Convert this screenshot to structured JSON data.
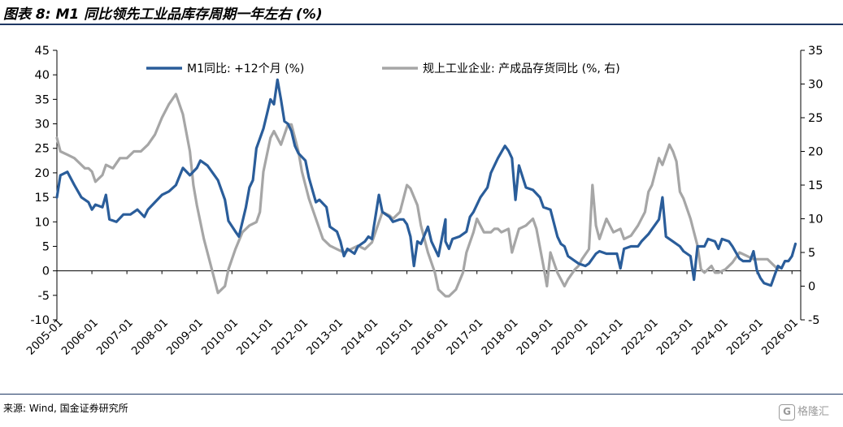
{
  "title": "图表 8: M1 同比领先工业品库存周期一年左右 (%)",
  "source": "来源: Wind, 国金证券研究所",
  "watermark": {
    "icon": "G",
    "text": "格隆汇"
  },
  "chart_data": {
    "type": "line",
    "title": "图表 8: M1 同比领先工业品库存周期一年左右 (%)",
    "x_ticks": [
      "2005-01",
      "2006-01",
      "2007-01",
      "2008-01",
      "2009-01",
      "2010-01",
      "2011-01",
      "2012-01",
      "2013-01",
      "2014-01",
      "2015-01",
      "2016-01",
      "2017-01",
      "2018-01",
      "2019-01",
      "2020-01",
      "2021-01",
      "2022-01",
      "2023-01",
      "2024-01",
      "2025-01",
      "2026-01"
    ],
    "y_left": {
      "ticks": [
        "45",
        "40",
        "35",
        "30",
        "25",
        "20",
        "15",
        "10",
        "5",
        "0",
        "-5",
        "-10"
      ],
      "range": [
        -10,
        45
      ]
    },
    "y_right": {
      "ticks": [
        "35",
        "30",
        "25",
        "20",
        "15",
        "10",
        "5",
        "0",
        "-5"
      ],
      "range": [
        -5,
        35
      ]
    },
    "series": [
      {
        "name": "M1同比: +12个月 (%)",
        "axis": "left",
        "color": "#2a5d9a",
        "points": [
          [
            2005.0,
            15
          ],
          [
            2005.1,
            19.5
          ],
          [
            2005.3,
            20.2
          ],
          [
            2005.5,
            17.5
          ],
          [
            2005.7,
            15
          ],
          [
            2005.9,
            14
          ],
          [
            2006.0,
            12.5
          ],
          [
            2006.1,
            13.5
          ],
          [
            2006.3,
            13
          ],
          [
            2006.4,
            15.5
          ],
          [
            2006.5,
            10.5
          ],
          [
            2006.7,
            10
          ],
          [
            2006.9,
            11.5
          ],
          [
            2007.1,
            11.5
          ],
          [
            2007.3,
            12.5
          ],
          [
            2007.5,
            11
          ],
          [
            2007.6,
            12.5
          ],
          [
            2007.8,
            14
          ],
          [
            2008.0,
            15.5
          ],
          [
            2008.2,
            16.2
          ],
          [
            2008.4,
            17.5
          ],
          [
            2008.6,
            21
          ],
          [
            2008.8,
            19.5
          ],
          [
            2009.0,
            21
          ],
          [
            2009.1,
            22.5
          ],
          [
            2009.3,
            21.5
          ],
          [
            2009.5,
            19.5
          ],
          [
            2009.6,
            18.5
          ],
          [
            2009.8,
            14.5
          ],
          [
            2009.9,
            10.2
          ],
          [
            2010.1,
            8
          ],
          [
            2010.2,
            7
          ],
          [
            2010.4,
            13
          ],
          [
            2010.5,
            17
          ],
          [
            2010.6,
            18.5
          ],
          [
            2010.7,
            25
          ],
          [
            2010.9,
            29
          ],
          [
            2011.0,
            32
          ],
          [
            2011.1,
            35
          ],
          [
            2011.2,
            34
          ],
          [
            2011.3,
            39
          ],
          [
            2011.4,
            35
          ],
          [
            2011.5,
            30.5
          ],
          [
            2011.6,
            30
          ],
          [
            2011.7,
            28.5
          ],
          [
            2011.8,
            25.5
          ],
          [
            2011.9,
            24
          ],
          [
            2012.1,
            22.5
          ],
          [
            2012.2,
            19
          ],
          [
            2012.4,
            14
          ],
          [
            2012.5,
            14.5
          ],
          [
            2012.7,
            13
          ],
          [
            2012.8,
            9
          ],
          [
            2013.0,
            8
          ],
          [
            2013.1,
            6
          ],
          [
            2013.2,
            3
          ],
          [
            2013.3,
            4.5
          ],
          [
            2013.5,
            3.5
          ],
          [
            2013.6,
            5
          ],
          [
            2013.8,
            6
          ],
          [
            2013.9,
            7
          ],
          [
            2014.0,
            6.5
          ],
          [
            2014.2,
            15.5
          ],
          [
            2014.3,
            12
          ],
          [
            2014.5,
            11
          ],
          [
            2014.6,
            10
          ],
          [
            2014.8,
            10.5
          ],
          [
            2014.9,
            10.5
          ],
          [
            2015.0,
            9.5
          ],
          [
            2015.1,
            7
          ],
          [
            2015.2,
            1
          ],
          [
            2015.3,
            6
          ],
          [
            2015.4,
            5.5
          ],
          [
            2015.6,
            9
          ],
          [
            2015.7,
            6
          ],
          [
            2015.8,
            4.5
          ],
          [
            2015.9,
            3
          ],
          [
            2016.1,
            10.5
          ],
          [
            2016.1,
            6
          ],
          [
            2016.2,
            4.5
          ],
          [
            2016.3,
            6.5
          ],
          [
            2016.5,
            7
          ],
          [
            2016.7,
            8
          ],
          [
            2016.8,
            11
          ],
          [
            2016.9,
            12
          ],
          [
            2017.1,
            15
          ],
          [
            2017.3,
            17
          ],
          [
            2017.4,
            20
          ],
          [
            2017.6,
            23
          ],
          [
            2017.8,
            25.5
          ],
          [
            2017.9,
            24.5
          ],
          [
            2018.0,
            23
          ],
          [
            2018.1,
            14.5
          ],
          [
            2018.2,
            21.5
          ],
          [
            2018.4,
            17
          ],
          [
            2018.6,
            16.5
          ],
          [
            2018.8,
            15
          ],
          [
            2018.9,
            13
          ],
          [
            2019.1,
            12.5
          ],
          [
            2019.3,
            7
          ],
          [
            2019.4,
            5.5
          ],
          [
            2019.5,
            5
          ],
          [
            2019.6,
            3
          ],
          [
            2019.8,
            2
          ],
          [
            2019.9,
            1.5
          ],
          [
            2020.1,
            1
          ],
          [
            2020.2,
            1.5
          ],
          [
            2020.4,
            3.5
          ],
          [
            2020.5,
            4
          ],
          [
            2020.7,
            3.5
          ],
          [
            2020.9,
            3.5
          ],
          [
            2021.0,
            3.5
          ],
          [
            2021.1,
            0.5
          ],
          [
            2021.2,
            4.5
          ],
          [
            2021.4,
            5
          ],
          [
            2021.6,
            5
          ],
          [
            2021.7,
            6
          ],
          [
            2021.9,
            7.5
          ],
          [
            2022.0,
            8.5
          ],
          [
            2022.2,
            10.5
          ],
          [
            2022.3,
            15
          ],
          [
            2022.4,
            7
          ],
          [
            2022.6,
            6
          ],
          [
            2022.8,
            5
          ],
          [
            2022.9,
            4
          ],
          [
            2023.1,
            3
          ],
          [
            2023.2,
            -1.8
          ],
          [
            2023.3,
            5
          ],
          [
            2023.5,
            5
          ],
          [
            2023.6,
            6.5
          ],
          [
            2023.8,
            6
          ],
          [
            2023.9,
            4.5
          ],
          [
            2024.0,
            6.5
          ],
          [
            2024.2,
            6
          ],
          [
            2024.3,
            5
          ],
          [
            2024.5,
            2.5
          ],
          [
            2024.6,
            2
          ],
          [
            2024.8,
            2
          ],
          [
            2024.9,
            4
          ],
          [
            2025.0,
            0
          ],
          [
            2025.1,
            -1.5
          ],
          [
            2025.2,
            -2.5
          ],
          [
            2025.4,
            -3
          ],
          [
            2025.6,
            1
          ],
          [
            2025.7,
            0.5
          ],
          [
            2025.8,
            2
          ],
          [
            2025.9,
            2
          ],
          [
            2026.0,
            3
          ],
          [
            2026.1,
            5.5
          ]
        ]
      },
      {
        "name": "规上工业企业: 产成品存货同比 (%, 右)",
        "axis": "right",
        "color": "#a6a6a6",
        "points": [
          [
            2005.0,
            22
          ],
          [
            2005.1,
            20
          ],
          [
            2005.3,
            19.5
          ],
          [
            2005.5,
            19
          ],
          [
            2005.7,
            18
          ],
          [
            2005.8,
            17.5
          ],
          [
            2005.9,
            17.5
          ],
          [
            2006.0,
            17
          ],
          [
            2006.1,
            15.5
          ],
          [
            2006.3,
            16.5
          ],
          [
            2006.4,
            18
          ],
          [
            2006.6,
            17.5
          ],
          [
            2006.8,
            19
          ],
          [
            2007.0,
            19
          ],
          [
            2007.2,
            20
          ],
          [
            2007.4,
            20
          ],
          [
            2007.6,
            21
          ],
          [
            2007.8,
            22.5
          ],
          [
            2008.0,
            25
          ],
          [
            2008.2,
            27
          ],
          [
            2008.4,
            28.5
          ],
          [
            2008.6,
            25.5
          ],
          [
            2008.8,
            20
          ],
          [
            2008.9,
            15
          ],
          [
            2009.0,
            12
          ],
          [
            2009.2,
            7
          ],
          [
            2009.4,
            3
          ],
          [
            2009.6,
            -1
          ],
          [
            2009.8,
            0
          ],
          [
            2009.9,
            2.5
          ],
          [
            2010.1,
            5.5
          ],
          [
            2010.3,
            8
          ],
          [
            2010.5,
            9
          ],
          [
            2010.7,
            9.5
          ],
          [
            2010.8,
            11
          ],
          [
            2010.9,
            17
          ],
          [
            2011.1,
            22
          ],
          [
            2011.2,
            23
          ],
          [
            2011.3,
            22
          ],
          [
            2011.4,
            21
          ],
          [
            2011.6,
            24
          ],
          [
            2011.7,
            24
          ],
          [
            2011.9,
            20
          ],
          [
            2012.0,
            17
          ],
          [
            2012.2,
            13
          ],
          [
            2012.4,
            10
          ],
          [
            2012.6,
            7
          ],
          [
            2012.8,
            6
          ],
          [
            2013.0,
            5.5
          ],
          [
            2013.2,
            5
          ],
          [
            2013.4,
            5.5
          ],
          [
            2013.6,
            6
          ],
          [
            2013.8,
            5.5
          ],
          [
            2014.0,
            6.5
          ],
          [
            2014.2,
            9.5
          ],
          [
            2014.3,
            11
          ],
          [
            2014.5,
            10.5
          ],
          [
            2014.6,
            10
          ],
          [
            2014.8,
            11
          ],
          [
            2014.9,
            13
          ],
          [
            2015.0,
            15
          ],
          [
            2015.1,
            14.5
          ],
          [
            2015.3,
            12
          ],
          [
            2015.4,
            9
          ],
          [
            2015.6,
            5
          ],
          [
            2015.8,
            2
          ],
          [
            2015.9,
            -0.5
          ],
          [
            2016.1,
            -1.5
          ],
          [
            2016.2,
            -1.5
          ],
          [
            2016.4,
            -0.5
          ],
          [
            2016.6,
            2
          ],
          [
            2016.7,
            5
          ],
          [
            2016.9,
            8
          ],
          [
            2017.0,
            10
          ],
          [
            2017.2,
            8
          ],
          [
            2017.4,
            8
          ],
          [
            2017.5,
            8.5
          ],
          [
            2017.6,
            8.5
          ],
          [
            2017.7,
            8
          ],
          [
            2017.9,
            8.5
          ],
          [
            2018.0,
            5
          ],
          [
            2018.2,
            8.5
          ],
          [
            2018.4,
            9
          ],
          [
            2018.6,
            10
          ],
          [
            2018.7,
            8.5
          ],
          [
            2018.9,
            3
          ],
          [
            2019.0,
            0
          ],
          [
            2019.1,
            5
          ],
          [
            2019.3,
            2
          ],
          [
            2019.5,
            0
          ],
          [
            2019.6,
            1
          ],
          [
            2019.8,
            2.5
          ],
          [
            2019.9,
            3
          ],
          [
            2020.0,
            4
          ],
          [
            2020.2,
            5.5
          ],
          [
            2020.3,
            15
          ],
          [
            2020.4,
            9
          ],
          [
            2020.5,
            7
          ],
          [
            2020.7,
            10
          ],
          [
            2020.8,
            9
          ],
          [
            2020.9,
            8
          ],
          [
            2021.1,
            8.5
          ],
          [
            2021.2,
            7
          ],
          [
            2021.4,
            7.5
          ],
          [
            2021.6,
            9
          ],
          [
            2021.8,
            11
          ],
          [
            2021.9,
            14
          ],
          [
            2022.0,
            15
          ],
          [
            2022.2,
            19
          ],
          [
            2022.3,
            18
          ],
          [
            2022.5,
            21
          ],
          [
            2022.6,
            20
          ],
          [
            2022.7,
            18.5
          ],
          [
            2022.8,
            14
          ],
          [
            2022.9,
            13
          ],
          [
            2023.1,
            10
          ],
          [
            2023.2,
            8
          ],
          [
            2023.3,
            6
          ],
          [
            2023.4,
            2.5
          ],
          [
            2023.5,
            2
          ],
          [
            2023.7,
            3
          ],
          [
            2023.8,
            2
          ],
          [
            2023.9,
            2
          ],
          [
            2024.1,
            2.5
          ],
          [
            2024.3,
            3.5
          ],
          [
            2024.5,
            5
          ],
          [
            2024.7,
            4.5
          ],
          [
            2024.9,
            4
          ],
          [
            2025.1,
            4
          ],
          [
            2025.3,
            4
          ],
          [
            2025.5,
            3
          ],
          [
            2025.6,
            2.5
          ]
        ]
      }
    ]
  }
}
